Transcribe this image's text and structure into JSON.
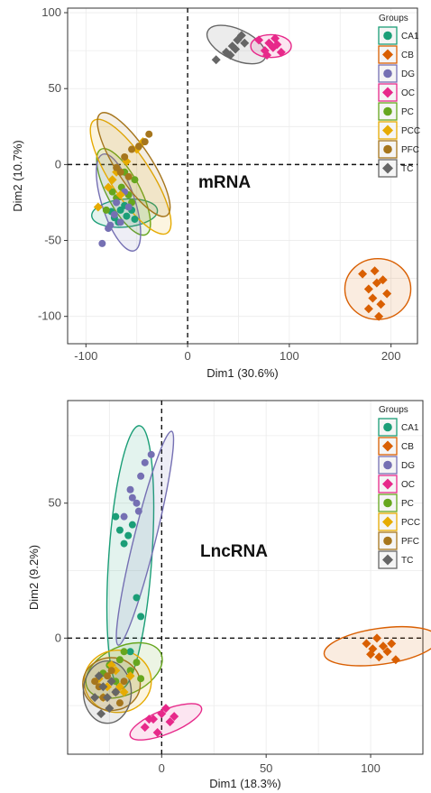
{
  "colors": {
    "CA1": "#1b9e77",
    "CB": "#d95f02",
    "DG": "#7570b3",
    "OC": "#e7298a",
    "PC": "#66a61e",
    "PCC": "#e6ab02",
    "PFC": "#a6761d",
    "TC": "#666666"
  },
  "shapes": {
    "CA1": "circle",
    "CB": "diamond",
    "DG": "circle",
    "OC": "diamond",
    "PC": "circle",
    "PCC": "diamond",
    "PFC": "circle",
    "TC": "diamond"
  },
  "chart_data": [
    {
      "type": "scatter",
      "annotation": "mRNA",
      "xlabel": "Dim1 (30.6%)",
      "ylabel": "Dim2 (10.7%)",
      "xlim": [
        -118,
        226
      ],
      "ylim": [
        -118,
        103
      ],
      "xticks": [
        -100,
        0,
        100,
        200
      ],
      "yticks": [
        100,
        50,
        0,
        -50,
        -100
      ],
      "grid": true,
      "legend": {
        "title": "Groups",
        "position": "top-right",
        "entries": [
          "CA1",
          "CB",
          "DG",
          "OC",
          "PC",
          "PCC",
          "PFC",
          "TC"
        ]
      },
      "reference_lines": {
        "x": 0,
        "y": 0
      },
      "ellipses": [
        {
          "group": "CA1",
          "cx": -62,
          "cy": -32,
          "rx": 26,
          "ry": 11,
          "angle": -5
        },
        {
          "group": "PC",
          "cx": -63,
          "cy": -18,
          "rx": 38,
          "ry": 13,
          "angle": 62
        },
        {
          "group": "DG",
          "cx": -68,
          "cy": -25,
          "rx": 40,
          "ry": 13,
          "angle": 72
        },
        {
          "group": "PCC",
          "cx": -56,
          "cy": -8,
          "rx": 53,
          "ry": 16,
          "angle": 57
        },
        {
          "group": "PFC",
          "cx": -53,
          "cy": 0,
          "rx": 48,
          "ry": 14,
          "angle": 57
        },
        {
          "group": "TC",
          "cx": 48,
          "cy": 79,
          "rx": 25,
          "ry": 12,
          "angle": 25
        },
        {
          "group": "OC",
          "cx": 82,
          "cy": 78,
          "rx": 16,
          "ry": 9,
          "angle": 0
        },
        {
          "group": "CB",
          "cx": 187,
          "cy": -82,
          "rx": 26,
          "ry": 24,
          "angle": 0
        }
      ],
      "series": [
        {
          "group": "CA1",
          "points": [
            [
              -72,
              -35
            ],
            [
              -66,
              -30
            ],
            [
              -60,
              -34
            ],
            [
              -55,
              -30
            ],
            [
              -68,
              -38
            ],
            [
              -62,
              -27
            ],
            [
              -52,
              -36
            ],
            [
              -75,
              -31
            ]
          ]
        },
        {
          "group": "PC",
          "points": [
            [
              -80,
              -30
            ],
            [
              -70,
              -22
            ],
            [
              -65,
              -15
            ],
            [
              -58,
              -20
            ],
            [
              -52,
              -10
            ],
            [
              -62,
              -5
            ],
            [
              -74,
              -18
            ],
            [
              -55,
              -25
            ]
          ]
        },
        {
          "group": "DG",
          "points": [
            [
              -84,
              -52
            ],
            [
              -78,
              -42
            ],
            [
              -72,
              -33
            ],
            [
              -66,
              -38
            ],
            [
              -70,
              -25
            ],
            [
              -62,
              -18
            ],
            [
              -58,
              -28
            ],
            [
              -76,
              -40
            ]
          ]
        },
        {
          "group": "PCC",
          "points": [
            [
              -88,
              -28
            ],
            [
              -78,
              -15
            ],
            [
              -70,
              -5
            ],
            [
              -60,
              2
            ],
            [
              -50,
              10
            ],
            [
              -44,
              15
            ],
            [
              -66,
              -20
            ],
            [
              -74,
              -10
            ]
          ]
        },
        {
          "group": "PFC",
          "points": [
            [
              -70,
              -2
            ],
            [
              -62,
              5
            ],
            [
              -55,
              10
            ],
            [
              -48,
              12
            ],
            [
              -42,
              15
            ],
            [
              -38,
              20
            ],
            [
              -58,
              -8
            ],
            [
              -66,
              -5
            ]
          ]
        },
        {
          "group": "TC",
          "points": [
            [
              28,
              69
            ],
            [
              38,
              74
            ],
            [
              44,
              78
            ],
            [
              49,
              82
            ],
            [
              53,
              85
            ],
            [
              56,
              80
            ],
            [
              47,
              76
            ],
            [
              42,
              72
            ]
          ]
        },
        {
          "group": "OC",
          "points": [
            [
              70,
              82
            ],
            [
              76,
              75
            ],
            [
              80,
              80
            ],
            [
              84,
              77
            ],
            [
              88,
              79
            ],
            [
              92,
              74
            ],
            [
              78,
              72
            ],
            [
              86,
              83
            ]
          ]
        },
        {
          "group": "CB",
          "points": [
            [
              172,
              -72
            ],
            [
              178,
              -82
            ],
            [
              182,
              -88
            ],
            [
              186,
              -78
            ],
            [
              190,
              -92
            ],
            [
              196,
              -85
            ],
            [
              184,
              -70
            ],
            [
              188,
              -100
            ],
            [
              192,
              -76
            ],
            [
              178,
              -95
            ]
          ]
        }
      ]
    },
    {
      "type": "scatter",
      "annotation": "LncRNA",
      "xlabel": "Dim1 (18.3%)",
      "ylabel": "Dim2 (9.2%)",
      "xlim": [
        -45,
        125
      ],
      "ylim": [
        -43,
        88
      ],
      "xticks": [
        0,
        50,
        100
      ],
      "yticks": [
        50,
        0
      ],
      "grid": true,
      "legend": {
        "title": "Groups",
        "position": "top-right",
        "entries": [
          "CA1",
          "CB",
          "DG",
          "OC",
          "PC",
          "PCC",
          "PFC",
          "TC"
        ]
      },
      "reference_lines": {
        "x": 0,
        "y": 0
      },
      "ellipses": [
        {
          "group": "CA1",
          "cx": -15,
          "cy": 30,
          "rx": 55,
          "ry": 9,
          "angle": -86
        },
        {
          "group": "DG",
          "cx": -8,
          "cy": 37,
          "rx": 46,
          "ry": 4.5,
          "angle": -76
        },
        {
          "group": "PC",
          "cx": -18,
          "cy": -12,
          "rx": 17,
          "ry": 10,
          "angle": -25
        },
        {
          "group": "PCC",
          "cx": -21,
          "cy": -16,
          "rx": 14,
          "ry": 13,
          "angle": 0
        },
        {
          "group": "PFC",
          "cx": -24,
          "cy": -17,
          "rx": 12,
          "ry": 11,
          "angle": 0
        },
        {
          "group": "TC",
          "cx": -26,
          "cy": -20,
          "rx": 10,
          "ry": 13,
          "angle": 0
        },
        {
          "group": "OC",
          "cx": 2,
          "cy": -31,
          "rx": 16,
          "ry": 5,
          "angle": -22
        },
        {
          "group": "CB",
          "cx": 105,
          "cy": -3,
          "rx": 24,
          "ry": 7.5,
          "angle": -8
        }
      ],
      "series": [
        {
          "group": "CA1",
          "points": [
            [
              -20,
              40
            ],
            [
              -16,
              38
            ],
            [
              -14,
              42
            ],
            [
              -18,
              35
            ],
            [
              -12,
              15
            ],
            [
              -10,
              8
            ],
            [
              -15,
              -5
            ],
            [
              -22,
              45
            ]
          ]
        },
        {
          "group": "DG",
          "points": [
            [
              -15,
              55
            ],
            [
              -12,
              50
            ],
            [
              -10,
              60
            ],
            [
              -8,
              65
            ],
            [
              -5,
              68
            ],
            [
              -18,
              45
            ],
            [
              -14,
              52
            ],
            [
              -11,
              47
            ]
          ]
        },
        {
          "group": "PC",
          "points": [
            [
              -25,
              -10
            ],
            [
              -20,
              -8
            ],
            [
              -15,
              -12
            ],
            [
              -10,
              -15
            ],
            [
              -22,
              -16
            ],
            [
              -18,
              -5
            ],
            [
              -12,
              -9
            ],
            [
              -28,
              -13
            ]
          ]
        },
        {
          "group": "PCC",
          "points": [
            [
              -30,
              -15
            ],
            [
              -26,
              -18
            ],
            [
              -22,
              -12
            ],
            [
              -18,
              -20
            ],
            [
              -15,
              -14
            ],
            [
              -28,
              -22
            ],
            [
              -24,
              -10
            ],
            [
              -20,
              -18
            ]
          ]
        },
        {
          "group": "PFC",
          "points": [
            [
              -30,
              -18
            ],
            [
              -26,
              -14
            ],
            [
              -22,
              -20
            ],
            [
              -18,
              -16
            ],
            [
              -28,
              -22
            ],
            [
              -24,
              -12
            ],
            [
              -20,
              -24
            ],
            [
              -32,
              -16
            ]
          ]
        },
        {
          "group": "TC",
          "points": [
            [
              -32,
              -22
            ],
            [
              -28,
              -18
            ],
            [
              -25,
              -26
            ],
            [
              -22,
              -20
            ],
            [
              -30,
              -14
            ],
            [
              -26,
              -22
            ],
            [
              -24,
              -16
            ],
            [
              -29,
              -28
            ]
          ]
        },
        {
          "group": "OC",
          "points": [
            [
              -8,
              -33
            ],
            [
              -4,
              -30
            ],
            [
              0,
              -28
            ],
            [
              4,
              -31
            ],
            [
              2,
              -26
            ],
            [
              -2,
              -35
            ],
            [
              6,
              -29
            ],
            [
              -6,
              -30
            ]
          ]
        },
        {
          "group": "CB",
          "points": [
            [
              98,
              -2
            ],
            [
              101,
              -4
            ],
            [
              103,
              0
            ],
            [
              106,
              -3
            ],
            [
              108,
              -5
            ],
            [
              104,
              -7
            ],
            [
              110,
              -2
            ],
            [
              112,
              -8
            ],
            [
              100,
              -6
            ]
          ]
        }
      ]
    }
  ]
}
